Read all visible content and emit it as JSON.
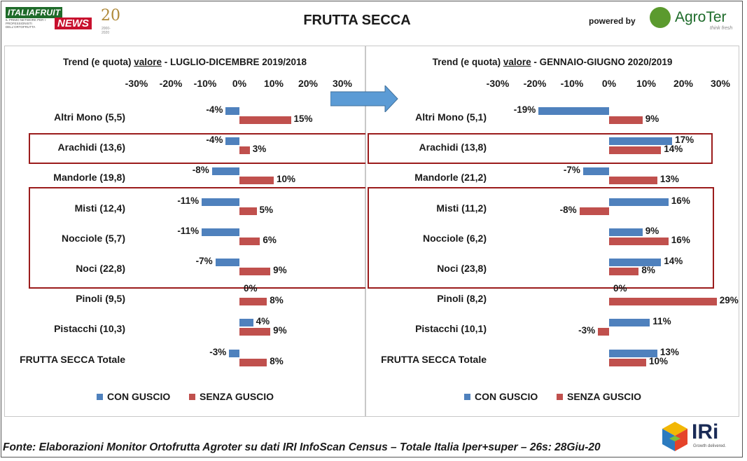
{
  "header": {
    "logo_top": "ITALIAFRUIT",
    "logo_bottom": "NEWS",
    "logo_tagline": "IL PRIMO NETWORK PER I PROFESSIONISTI DELL'ORTOFRUTTA",
    "logo_anniversary": "20",
    "logo_years": "2000-2020",
    "title": "FRUTTA SECCA",
    "powered_by": "powered by",
    "agroter_name": "AgroTer",
    "agroter_sub": "think fresh"
  },
  "colors": {
    "con_guscio": "#4f81bd",
    "senza_guscio": "#c0504d",
    "highlight": "#9b1c1c"
  },
  "chart_data": [
    {
      "type": "bar",
      "orientation": "horizontal",
      "title_prefix": "Trend (e quota) ",
      "title_underlined": "valore",
      "title_suffix": " - LUGLIO-DICEMBRE 2019/2018",
      "xlim": [
        -30,
        30
      ],
      "ticks": [
        "-30%",
        "-20%",
        "-10%",
        "0%",
        "10%",
        "20%",
        "30%"
      ],
      "categories": [
        "Altri Mono (5,5)",
        "Arachidi (13,6)",
        "Mandorle (19,8)",
        "Misti (12,4)",
        "Nocciole (5,7)",
        "Noci (22,8)",
        "Pinoli (9,5)",
        "Pistacchi (10,3)",
        "FRUTTA SECCA Totale"
      ],
      "series": [
        {
          "name": "CON GUSCIO",
          "values": [
            -4,
            -4,
            -8,
            -11,
            -11,
            -7,
            0,
            4,
            -3
          ],
          "labels": [
            "-4%",
            "-4%",
            "-8%",
            "-11%",
            "-11%",
            "-7%",
            "0%",
            "4%",
            "-3%"
          ]
        },
        {
          "name": "SENZA GUSCIO",
          "values": [
            15,
            3,
            10,
            5,
            6,
            9,
            8,
            9,
            8
          ],
          "labels": [
            "15%",
            "3%",
            "10%",
            "5%",
            "6%",
            "9%",
            "8%",
            "9%",
            "8%"
          ]
        }
      ],
      "highlighted_groups": [
        [
          "Arachidi (13,6)"
        ],
        [
          "Misti (12,4)",
          "Nocciole (5,7)",
          "Noci (22,8)"
        ]
      ]
    },
    {
      "type": "bar",
      "orientation": "horizontal",
      "title_prefix": "Trend (e quota) ",
      "title_underlined": "valore",
      "title_suffix": " - GENNAIO-GIUGNO 2020/2019",
      "xlim": [
        -30,
        30
      ],
      "ticks": [
        "-30%",
        "-20%",
        "-10%",
        "0%",
        "10%",
        "20%",
        "30%"
      ],
      "categories": [
        "Altri Mono (5,1)",
        "Arachidi (13,8)",
        "Mandorle (21,2)",
        "Misti (11,2)",
        "Nocciole (6,2)",
        "Noci (23,8)",
        "Pinoli (8,2)",
        "Pistacchi (10,1)",
        "FRUTTA SECCA Totale"
      ],
      "series": [
        {
          "name": "CON GUSCIO",
          "values": [
            -19,
            17,
            -7,
            16,
            9,
            14,
            0,
            11,
            13
          ],
          "labels": [
            "-19%",
            "17%",
            "-7%",
            "16%",
            "9%",
            "14%",
            "0%",
            "11%",
            "13%"
          ]
        },
        {
          "name": "SENZA GUSCIO",
          "values": [
            9,
            14,
            13,
            -8,
            16,
            8,
            29,
            -3,
            10
          ],
          "labels": [
            "9%",
            "14%",
            "13%",
            "-8%",
            "16%",
            "8%",
            "29%",
            "-3%",
            "10%"
          ]
        }
      ],
      "highlighted_groups": [
        [
          "Arachidi (13,8)"
        ],
        [
          "Misti (11,2)",
          "Nocciole (6,2)",
          "Noci (23,8)"
        ]
      ]
    }
  ],
  "legend": {
    "con_guscio": "CON GUSCIO",
    "senza_guscio": "SENZA GUSCIO"
  },
  "footer": {
    "source": "Fonte: Elaborazioni Monitor Ortofrutta Agroter su dati IRI InfoScan Census – Totale Italia Iper+super – 26s: 28Giu-20",
    "iri_logo": "IRi",
    "iri_tagline": "Growth delivered."
  }
}
